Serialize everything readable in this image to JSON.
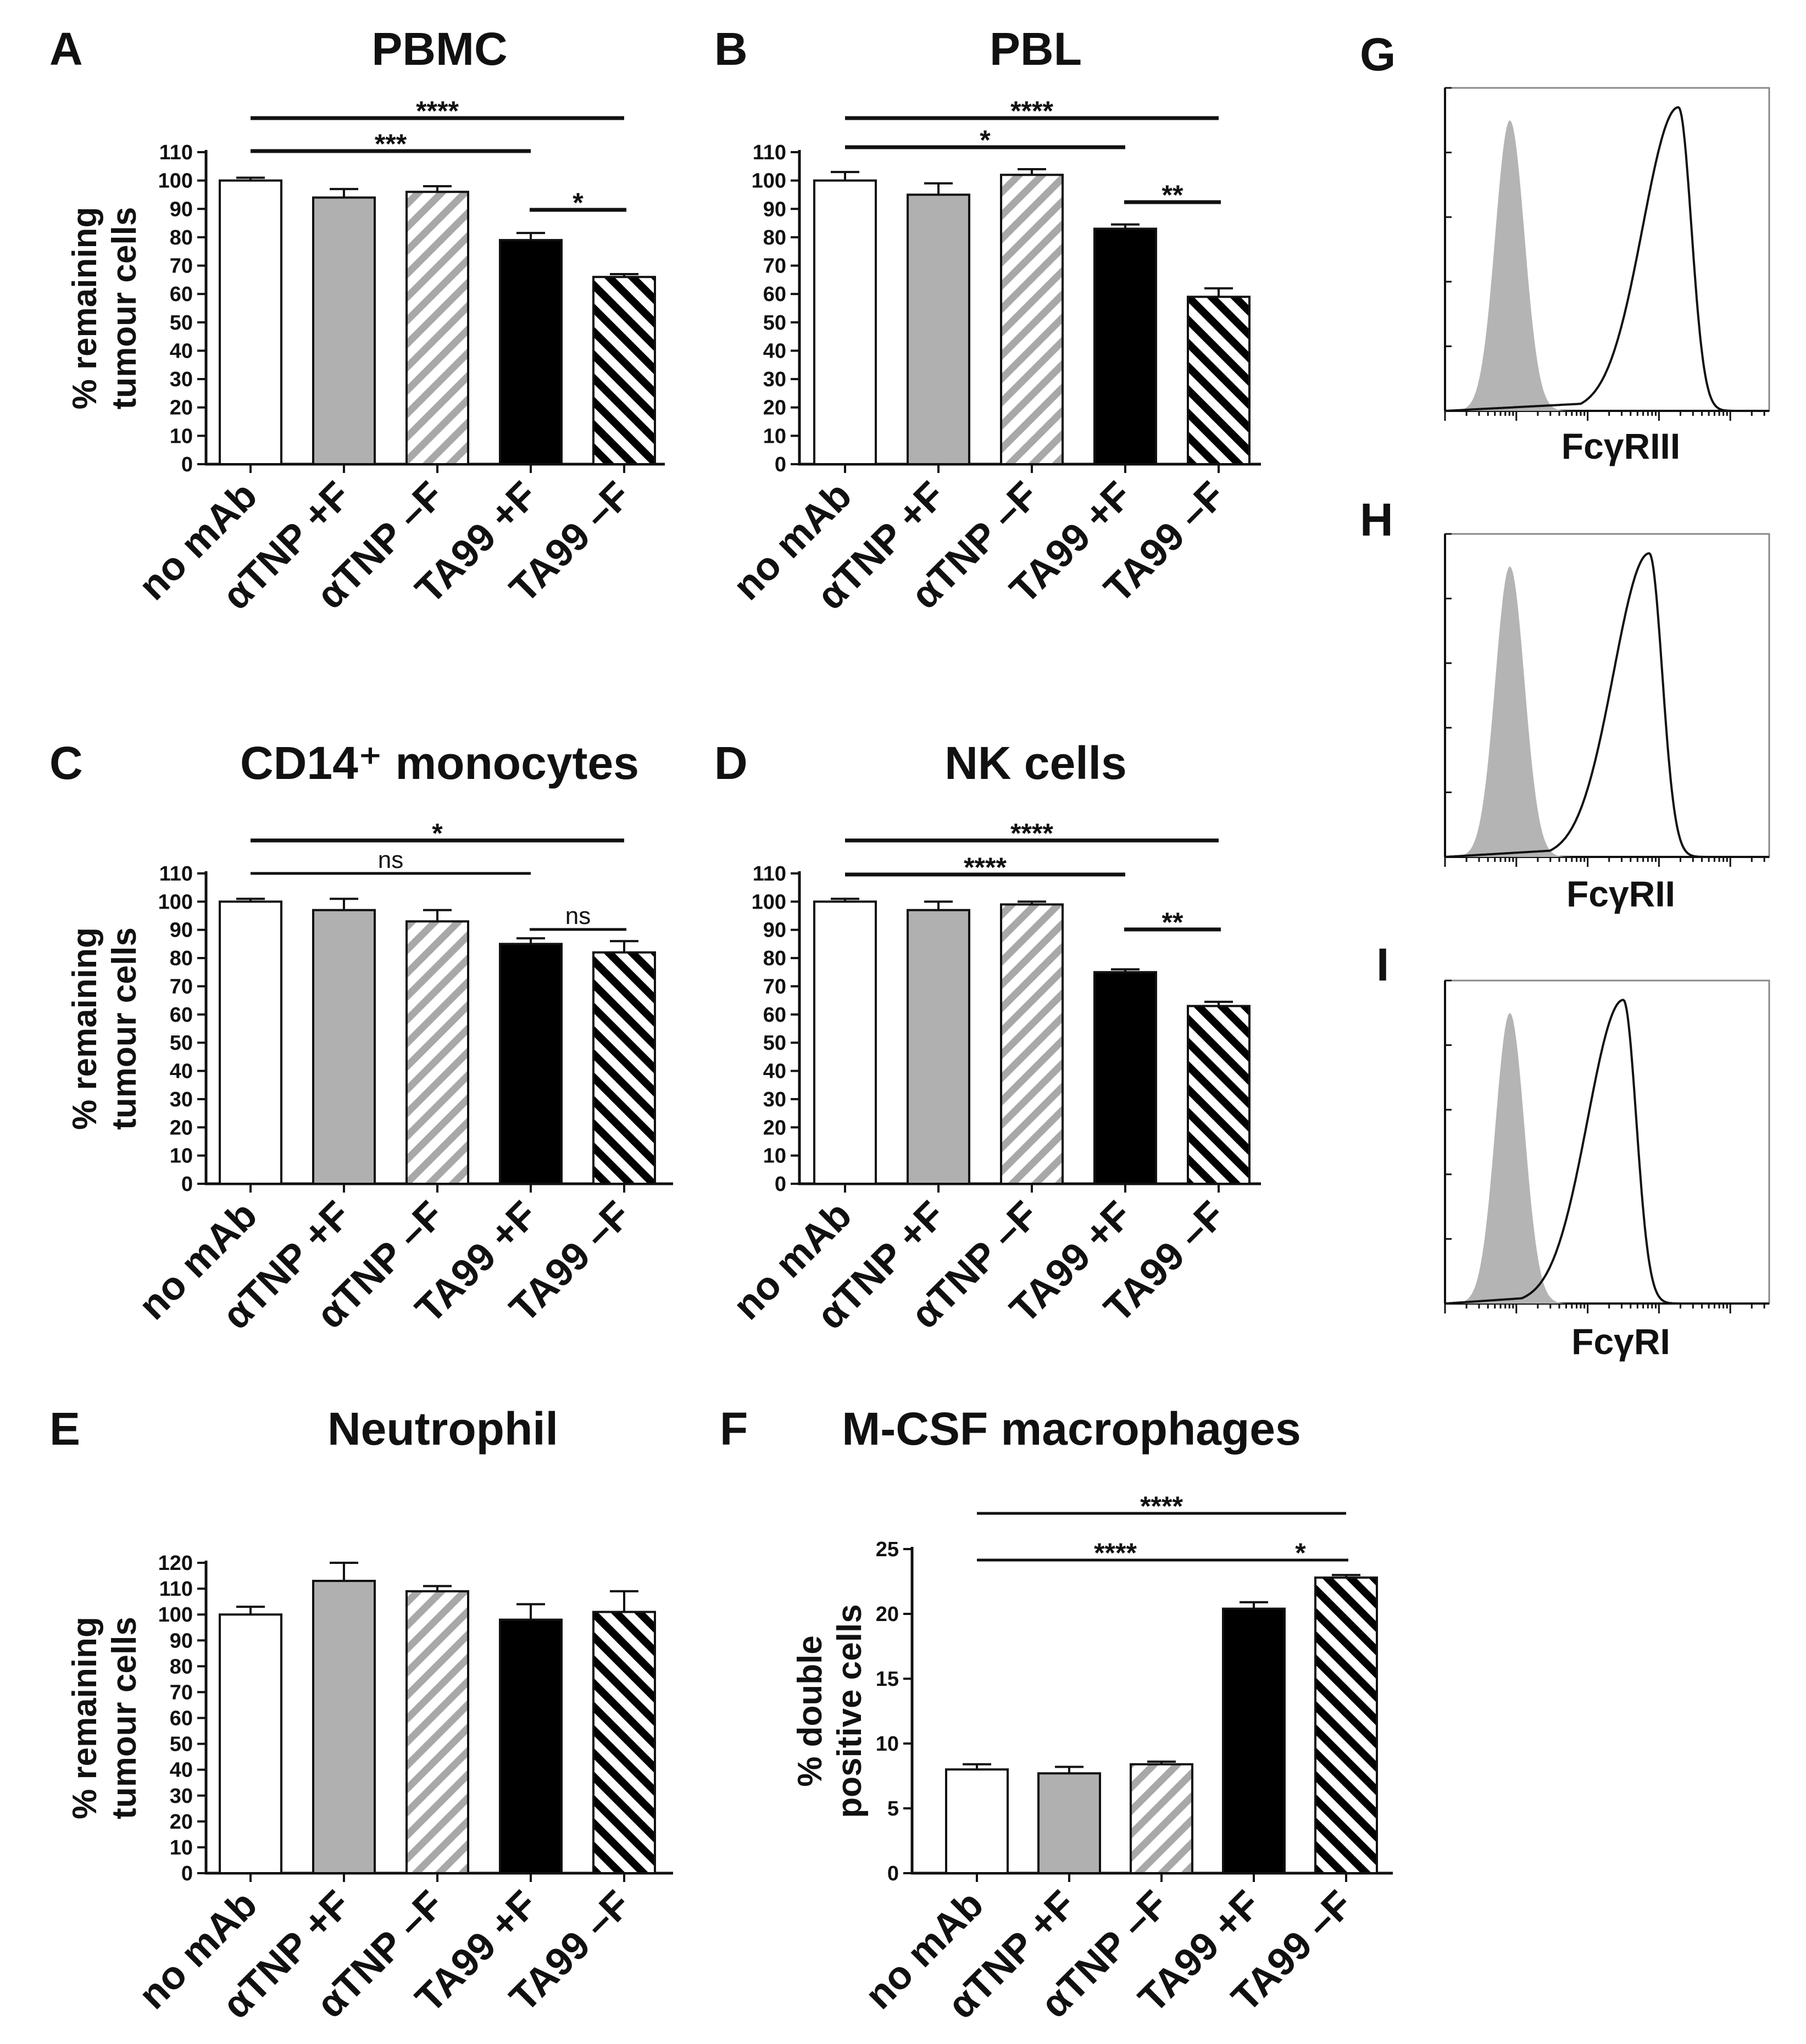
{
  "colors": {
    "ink": "#111111",
    "open": "#ffffff",
    "grey": "#b0b0b0",
    "greyHatch": "#a8a8a8",
    "black": "#000000",
    "flowFill": "#b4b4b4"
  },
  "categories": [
    "no mAb",
    "αTNP +F",
    "αTNP –F",
    "TA99 +F",
    "TA99 –F"
  ],
  "chart_data": [
    {
      "id": "A",
      "letter": "A",
      "type": "bar",
      "title": "PBMC",
      "ylabel": [
        "% remaining",
        "tumour cells"
      ],
      "ylim": [
        0,
        110
      ],
      "ystep": 10,
      "ymax_tick": 110,
      "values": [
        100,
        94,
        96,
        79,
        66
      ],
      "errors": [
        1,
        3,
        2,
        2.5,
        1
      ],
      "brackets": [
        {
          "from": 0,
          "to": 4,
          "label": "****"
        },
        {
          "from": 0,
          "to": 3,
          "label": "***"
        },
        {
          "from": 3,
          "to": 4,
          "label": "*"
        }
      ]
    },
    {
      "id": "B",
      "letter": "B",
      "type": "bar",
      "title": "PBL",
      "ylabel": [],
      "ylim": [
        0,
        110
      ],
      "ystep": 10,
      "ymax_tick": 110,
      "values": [
        100,
        95,
        102,
        83,
        59
      ],
      "errors": [
        3,
        4,
        2,
        1.5,
        3
      ],
      "brackets": [
        {
          "from": 0,
          "to": 4,
          "label": "****"
        },
        {
          "from": 0,
          "to": 3,
          "label": "*"
        },
        {
          "from": 3,
          "to": 4,
          "label": "**"
        }
      ]
    },
    {
      "id": "C",
      "letter": "C",
      "type": "bar",
      "title": "CD14⁺ monocytes",
      "ylabel": [
        "% remaining",
        "tumour cells"
      ],
      "ylim": [
        0,
        110
      ],
      "ystep": 10,
      "ymax_tick": 110,
      "values": [
        100,
        97,
        93,
        85,
        82
      ],
      "errors": [
        1,
        4,
        4,
        2,
        4
      ],
      "brackets": [
        {
          "from": 0,
          "to": 4,
          "label": "*"
        },
        {
          "from": 0,
          "to": 3,
          "label": "ns"
        },
        {
          "from": 3,
          "to": 4,
          "label": "ns"
        }
      ]
    },
    {
      "id": "D",
      "letter": "D",
      "type": "bar",
      "title": "NK cells",
      "ylabel": [],
      "ylim": [
        0,
        110
      ],
      "ystep": 10,
      "ymax_tick": 110,
      "values": [
        100,
        97,
        99,
        75,
        63
      ],
      "errors": [
        1,
        3,
        1,
        1,
        1.5
      ],
      "brackets": [
        {
          "from": 0,
          "to": 4,
          "label": "****"
        },
        {
          "from": 0,
          "to": 3,
          "label": "****"
        },
        {
          "from": 3,
          "to": 4,
          "label": "**"
        }
      ]
    },
    {
      "id": "E",
      "letter": "E",
      "type": "bar",
      "title": "Neutrophil",
      "ylabel": [
        "% remaining",
        "tumour cells"
      ],
      "ylim": [
        0,
        120
      ],
      "ystep": 10,
      "ymax_tick": 120,
      "values": [
        100,
        113,
        109,
        98,
        101
      ],
      "errors": [
        3,
        7,
        2,
        6,
        8
      ],
      "brackets": []
    },
    {
      "id": "F",
      "letter": "F",
      "type": "bar",
      "title": "M-CSF macrophages",
      "ylabel": [
        "% double",
        "positive cells"
      ],
      "ylim": [
        0,
        25
      ],
      "ystep": 5,
      "ymax_tick": 25,
      "values": [
        8.0,
        7.7,
        8.4,
        20.4,
        22.8
      ],
      "errors": [
        0.4,
        0.5,
        0.2,
        0.5,
        0.2
      ],
      "brackets": [
        {
          "from": 0,
          "to": 4,
          "label": "****"
        },
        {
          "from": 0,
          "to": 3,
          "label": "****"
        },
        {
          "from": 3,
          "to": 4,
          "label": "*"
        }
      ]
    }
  ],
  "histograms": [
    {
      "id": "G",
      "letter": "G",
      "xlabel": "FcγRIII",
      "filled_peak": 0.2,
      "open_peak": 0.72
    },
    {
      "id": "H",
      "letter": "H",
      "xlabel": "FcγRII",
      "filled_peak": 0.2,
      "open_peak": 0.63
    },
    {
      "id": "I",
      "letter": "I",
      "xlabel": "FcγRI",
      "filled_peak": 0.2,
      "open_peak": 0.55
    }
  ]
}
